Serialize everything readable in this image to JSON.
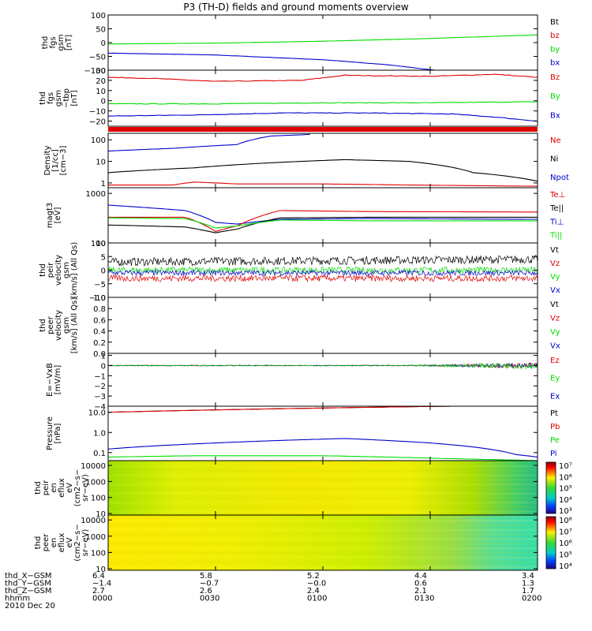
{
  "title": "P3 (TH-D) fields and ground moments overview",
  "colors": {
    "black": "#000000",
    "red": "#e00000",
    "green": "#00dd00",
    "blue": "#0000cc"
  },
  "chart_data": [
    {
      "type": "line",
      "ylabel": [
        "thd",
        "fgs",
        "gsm",
        "[nT]"
      ],
      "ylim": [
        -100,
        100
      ],
      "yticks": [
        "100",
        "50",
        "0",
        "−50",
        "−100"
      ],
      "ytick_values": [
        100,
        50,
        0,
        -50,
        -100
      ],
      "legend": [
        {
          "name": "Bt",
          "color": "#000000"
        },
        {
          "name": "bz",
          "color": "#e00000"
        },
        {
          "name": "by",
          "color": "#00dd00"
        },
        {
          "name": "bx",
          "color": "#0000cc"
        }
      ],
      "series": [
        {
          "name": "by",
          "color": "#00dd00",
          "x": [
            0,
            0.25,
            0.5,
            0.75,
            1
          ],
          "values": [
            -5,
            -2,
            5,
            15,
            28
          ]
        },
        {
          "name": "bx",
          "color": "#0000cc",
          "x": [
            0,
            0.25,
            0.5,
            0.65,
            0.76,
            0.8
          ],
          "values": [
            -38,
            -45,
            -62,
            -80,
            -100,
            -100
          ]
        }
      ]
    },
    {
      "type": "line",
      "ylabel": [
        "thd",
        "fgs",
        "gsm",
        "−tbp",
        "[nT]"
      ],
      "ylim": [
        -25,
        30
      ],
      "yticks": [
        "30",
        "20",
        "10",
        "0",
        "−10",
        "−20"
      ],
      "ytick_values": [
        30,
        20,
        10,
        0,
        -10,
        -20
      ],
      "legend": [
        {
          "name": "Bz",
          "color": "#e00000"
        },
        {
          "name": "By",
          "color": "#00dd00"
        },
        {
          "name": "Bx",
          "color": "#0000cc"
        }
      ],
      "series": [
        {
          "name": "Bz",
          "color": "#e00000",
          "x": [
            0,
            0.1,
            0.25,
            0.45,
            0.55,
            0.75,
            0.9,
            1
          ],
          "values": [
            23,
            22,
            19,
            20,
            25,
            24,
            26,
            23
          ]
        },
        {
          "name": "By",
          "color": "#00dd00",
          "x": [
            0,
            0.25,
            0.5,
            0.75,
            1
          ],
          "values": [
            -3,
            -3,
            -2,
            -2,
            -1
          ]
        },
        {
          "name": "Bx",
          "color": "#0000cc",
          "x": [
            0,
            0.2,
            0.4,
            0.6,
            0.8,
            0.9,
            1
          ],
          "values": [
            -15,
            -14,
            -12,
            -12,
            -13,
            -16,
            -20
          ]
        }
      ]
    },
    {
      "type": "line",
      "ylabel": [
        "Density",
        "[1/cc]",
        "[cm−3]"
      ],
      "ylim": [
        0.6,
        200
      ],
      "yscale": "log",
      "yticks": [
        "100",
        "10",
        "1"
      ],
      "ytick_values": [
        100,
        10,
        1
      ],
      "legend": [
        {
          "name": "Ne",
          "color": "#e00000"
        },
        {
          "name": "Ni",
          "color": "#000000"
        },
        {
          "name": "Npot",
          "color": "#0000cc"
        }
      ],
      "series": [
        {
          "name": "Ni",
          "color": "#000000",
          "x": [
            0,
            0.2,
            0.4,
            0.55,
            0.7,
            0.85,
            1
          ],
          "values": [
            3,
            5,
            9,
            12,
            10,
            3,
            1.2
          ]
        },
        {
          "name": "Ne",
          "color": "#e00000",
          "x": [
            0,
            0.15,
            0.2,
            0.3,
            0.5,
            0.7,
            1
          ],
          "values": [
            0.8,
            0.8,
            1.1,
            0.9,
            0.9,
            0.8,
            0.7
          ]
        },
        {
          "name": "Npot",
          "color": "#0000cc",
          "x": [
            0,
            0.15,
            0.3,
            0.38,
            0.45,
            0.47
          ],
          "values": [
            30,
            40,
            60,
            150,
            170,
            180
          ]
        }
      ]
    },
    {
      "type": "line",
      "ylabel": [
        "magt3",
        "[eV]"
      ],
      "ylim": [
        100,
        1300
      ],
      "yscale": "log",
      "yticks": [
        "1000",
        "100"
      ],
      "ytick_values": [
        1000,
        100
      ],
      "legend": [
        {
          "name": "Te⊥",
          "color": "#e00000"
        },
        {
          "name": "Te||",
          "color": "#000000"
        },
        {
          "name": "Ti⊥",
          "color": "#0000cc"
        },
        {
          "name": "Ti||",
          "color": "#00dd00"
        }
      ],
      "series": [
        {
          "name": "Ti⊥",
          "color": "#0000cc",
          "x": [
            0,
            0.18,
            0.25,
            0.3,
            0.4,
            0.6,
            1
          ],
          "values": [
            580,
            450,
            260,
            240,
            300,
            310,
            300
          ]
        },
        {
          "name": "Te⊥",
          "color": "#e00000",
          "x": [
            0,
            0.18,
            0.25,
            0.3,
            0.4,
            0.6,
            1
          ],
          "values": [
            330,
            330,
            170,
            220,
            450,
            430,
            420
          ]
        },
        {
          "name": "Te||",
          "color": "#000000",
          "x": [
            0,
            0.18,
            0.25,
            0.3,
            0.4,
            0.6,
            1
          ],
          "values": [
            230,
            210,
            160,
            190,
            320,
            330,
            330
          ]
        },
        {
          "name": "Ti||",
          "color": "#00dd00",
          "x": [
            0,
            0.18,
            0.25,
            0.3,
            0.4,
            0.6,
            1
          ],
          "values": [
            320,
            310,
            200,
            220,
            290,
            280,
            280
          ]
        }
      ]
    },
    {
      "type": "line",
      "ylabel": [
        "thd",
        "peir",
        "velocity",
        "gsm",
        "[km/s] (All Qs)"
      ],
      "ylim": [
        -10,
        10
      ],
      "yticks": [
        "10",
        "5",
        "0",
        "−5",
        "−10"
      ],
      "ytick_values": [
        10,
        5,
        0,
        -5,
        -10
      ],
      "legend": [
        {
          "name": "Vt",
          "color": "#000000"
        },
        {
          "name": "Vz",
          "color": "#e00000"
        },
        {
          "name": "Vy",
          "color": "#00dd00"
        },
        {
          "name": "Vx",
          "color": "#0000cc"
        }
      ],
      "series": [
        {
          "name": "Vt",
          "color": "#000000",
          "noise": 1.5,
          "x": [
            0,
            0.5,
            1
          ],
          "values": [
            3,
            3.5,
            4
          ]
        },
        {
          "name": "Vy",
          "color": "#00dd00",
          "noise": 1.2,
          "x": [
            0,
            0.5,
            1
          ],
          "values": [
            0,
            0,
            0
          ]
        },
        {
          "name": "Vx",
          "color": "#0000cc",
          "noise": 1.0,
          "x": [
            0,
            0.5,
            1
          ],
          "values": [
            -1,
            -1,
            -1
          ]
        },
        {
          "name": "Vz",
          "color": "#e00000",
          "noise": 1.2,
          "x": [
            0,
            0.5,
            1
          ],
          "values": [
            -3,
            -3,
            -3
          ]
        }
      ]
    },
    {
      "type": "line",
      "ylabel": [
        "thd",
        "peer",
        "velocity",
        "gsm",
        "[km/s] (All Qs)"
      ],
      "ylim": [
        0,
        1
      ],
      "yticks": [
        "1.0",
        "0.8",
        "0.6",
        "0.4",
        "0.2",
        "0.0"
      ],
      "ytick_values": [
        1,
        0.8,
        0.6,
        0.4,
        0.2,
        0
      ],
      "legend": [
        {
          "name": "Vt",
          "color": "#000000"
        },
        {
          "name": "Vz",
          "color": "#e00000"
        },
        {
          "name": "Vy",
          "color": "#00dd00"
        },
        {
          "name": "Vx",
          "color": "#0000cc"
        }
      ],
      "series": []
    },
    {
      "type": "line",
      "ylabel": [
        "E=−VxB",
        "[mV/m]"
      ],
      "ylim": [
        -4,
        1.2
      ],
      "yticks": [
        "1",
        "0",
        "−1",
        "−2",
        "−3",
        "−4"
      ],
      "ytick_values": [
        1,
        0,
        -1,
        -2,
        -3,
        -4
      ],
      "legend": [
        {
          "name": "Ez",
          "color": "#e00000"
        },
        {
          "name": "Ey",
          "color": "#00dd00"
        },
        {
          "name": "Ex",
          "color": "#0000cc"
        }
      ],
      "series": [
        {
          "name": "Ez",
          "color": "#e00000",
          "noise": 0.2,
          "grow": true,
          "x": [
            0,
            1
          ],
          "values": [
            0,
            0
          ]
        },
        {
          "name": "Ex",
          "color": "#0000cc",
          "noise": 0.2,
          "grow": true,
          "x": [
            0,
            1
          ],
          "values": [
            0,
            0
          ]
        },
        {
          "name": "Ey",
          "color": "#00dd00",
          "noise": 0.25,
          "grow": true,
          "x": [
            0,
            1
          ],
          "values": [
            0,
            0
          ]
        }
      ]
    },
    {
      "type": "line",
      "ylabel": [
        "Pressure",
        "[nPa]"
      ],
      "ylim": [
        0.04,
        20
      ],
      "yscale": "log",
      "yticks": [
        "10.0",
        "1.0",
        "0.1"
      ],
      "ytick_values": [
        10,
        1,
        0.1
      ],
      "legend": [
        {
          "name": "Pt",
          "color": "#000000"
        },
        {
          "name": "Pb",
          "color": "#e00000"
        },
        {
          "name": "Pe",
          "color": "#00dd00"
        },
        {
          "name": "Pi",
          "color": "#0000cc"
        }
      ],
      "series": [
        {
          "name": "Pt",
          "color": "#000000",
          "x": [
            0,
            0.4,
            0.8,
            0.82
          ],
          "values": [
            10,
            15,
            20,
            20
          ]
        },
        {
          "name": "Pb",
          "color": "#e00000",
          "x": [
            0,
            0.4,
            0.8,
            0.82
          ],
          "values": [
            10,
            15,
            20,
            20
          ]
        },
        {
          "name": "Pi",
          "color": "#0000cc",
          "x": [
            0,
            0.25,
            0.55,
            0.75,
            0.95,
            1
          ],
          "values": [
            0.15,
            0.3,
            0.5,
            0.3,
            0.08,
            0.06
          ]
        },
        {
          "name": "Pe",
          "color": "#00dd00",
          "x": [
            0,
            0.2,
            0.5,
            0.8,
            1
          ],
          "values": [
            0.06,
            0.07,
            0.07,
            0.05,
            0.04
          ]
        }
      ]
    },
    {
      "type": "heatmap",
      "ylabel": [
        "thd",
        "peir",
        "en",
        "eflux",
        "eV",
        "(cm2−s−",
        "sr−eV)"
      ],
      "yscale": "log",
      "ylim": [
        8,
        20000
      ],
      "yticks": [
        "10000",
        "1000",
        "100",
        "10"
      ],
      "ytick_values": [
        10000,
        1000,
        100,
        10
      ],
      "colorbar": {
        "ticks": [
          "10⁷",
          "10⁶",
          "10⁵",
          "10⁴",
          "10³"
        ]
      }
    },
    {
      "type": "heatmap",
      "ylabel": [
        "thd",
        "peer",
        "en",
        "eflux",
        "eV",
        "(cm2−s−",
        "sr−eV)"
      ],
      "yscale": "log",
      "ylim": [
        8,
        20000
      ],
      "yticks": [
        "10000",
        "1000",
        "100",
        "10"
      ],
      "ytick_values": [
        10000,
        1000,
        100,
        10
      ],
      "colorbar": {
        "ticks": [
          "10⁸",
          "10⁷",
          "10⁶",
          "10⁵",
          "10⁴"
        ]
      }
    }
  ],
  "xaxis": {
    "rows": [
      {
        "label": "thd_X−GSM",
        "values": [
          "6.4",
          "5.8",
          "5.2",
          "4.4",
          "3.4"
        ]
      },
      {
        "label": "thd_Y−GSM",
        "values": [
          "−1.4",
          "−0.7",
          "−0.0",
          "0.6",
          "1.3"
        ]
      },
      {
        "label": "thd_Z−GSM",
        "values": [
          "2.7",
          "2.6",
          "2.4",
          "2.1",
          "1.7"
        ]
      },
      {
        "label": "hhmm",
        "values": [
          "0000",
          "0030",
          "0100",
          "0130",
          "0200"
        ]
      }
    ],
    "date": "2010 Dec 20"
  }
}
